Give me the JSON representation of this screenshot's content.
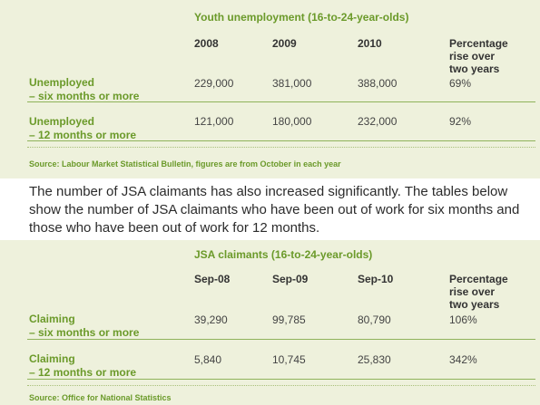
{
  "table1": {
    "title": "Youth unemployment (16-to-24-year-olds)",
    "columns": [
      "2008",
      "2009",
      "2010",
      "Percentage\nrise over\ntwo years"
    ],
    "rows": [
      {
        "label_line1": "Unemployed",
        "label_line2": "– six months or more",
        "values": [
          "229,000",
          "381,000",
          "388,000",
          "69%"
        ]
      },
      {
        "label_line1": "Unemployed",
        "label_line2": "– 12 months or more",
        "values": [
          "121,000",
          "180,000",
          "232,000",
          "92%"
        ]
      }
    ],
    "source": "Source: Labour Market Statistical Bulletin, figures are from October in each year"
  },
  "paragraph": "The number of JSA claimants has also increased significantly. The tables below show the number of JSA claimants who have been out of work for six months and those who have been out of work for 12 months.",
  "table2": {
    "title": "JSA claimants (16-to-24-year-olds)",
    "columns": [
      "Sep-08",
      "Sep-09",
      "Sep-10",
      "Percentage\nrise over\ntwo years"
    ],
    "rows": [
      {
        "label_line1": "Claiming",
        "label_line2": "– six months or more",
        "values": [
          "39,290",
          "99,785",
          "80,790",
          "106%"
        ]
      },
      {
        "label_line1": "Claiming",
        "label_line2": "– 12 months or more",
        "values": [
          "5,840",
          "10,745",
          "25,830",
          "342%"
        ]
      }
    ],
    "source": "Source: Office for National Statistics"
  },
  "colors": {
    "accent_green": "#6b9a2a",
    "panel_bg": "#eef1dc"
  }
}
